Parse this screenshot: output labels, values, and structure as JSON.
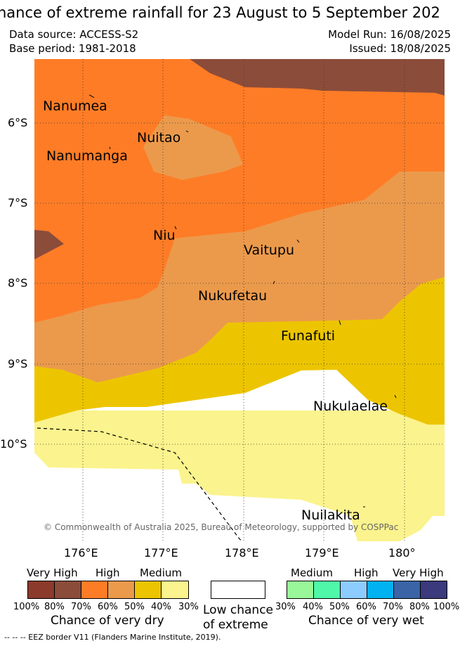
{
  "title": "hance of extreme rainfall for 23 August to 5 September 202",
  "meta": {
    "data_source": "Data source: ACCESS-S2",
    "base_period": "Base period: 1981-2018",
    "model_run": "Model Run: 16/08/2025",
    "issued": "Issued: 18/08/2025"
  },
  "map": {
    "lat_labels": [
      "6°S",
      "7°S",
      "8°S",
      "9°S",
      "10°S"
    ],
    "lon_labels": [
      "176°E",
      "177°E",
      "178°E",
      "179°E",
      "180°"
    ],
    "places": [
      "Nanumea",
      "Nuitao",
      "Nanumanga",
      "Niu",
      "Vaitupu",
      "Nukufetau",
      "Funafuti",
      "Nukulaelae",
      "Nuilakita"
    ],
    "copyright": "© Commonwealth of Australia 2025, Bureau of Meteorology, supported by COSPPac",
    "colors": {
      "dry_very_high_100_80": "#8b3a2b",
      "dry_very_high_80_70": "#8b4c3a",
      "dry_high_70_60": "#ff7c26",
      "dry_high_60_50": "#eb9a4c",
      "dry_medium_50_40": "#ecc500",
      "dry_medium_40_30": "#fbf38d",
      "low_chance": "#ffffff"
    }
  },
  "legend": {
    "dry_headers": [
      "Very High",
      "High",
      "Medium"
    ],
    "dry_colors": [
      "#8b3a2b",
      "#8b4c3a",
      "#ff7c26",
      "#eb9a4c",
      "#ecc500",
      "#fbf38d"
    ],
    "dry_ticks": [
      "100%",
      "80%",
      "70%",
      "60%",
      "50%",
      "40%",
      "30%"
    ],
    "dry_caption": "Chance of very dry",
    "low_caption_1": "Low chance",
    "low_caption_2": "of extreme",
    "wet_headers": [
      "Medium",
      "High",
      "Very High"
    ],
    "wet_colors": [
      "#99f799",
      "#4ff7a8",
      "#8dccff",
      "#00b2f0",
      "#3a64a5",
      "#3a3a7c"
    ],
    "wet_ticks": [
      "30%",
      "40%",
      "50%",
      "60%",
      "70%",
      "80%",
      "100%"
    ],
    "wet_caption": "Chance of very wet"
  },
  "footer": "-- -- -- EEZ border V11 (Flanders Marine Institute, 2019)."
}
